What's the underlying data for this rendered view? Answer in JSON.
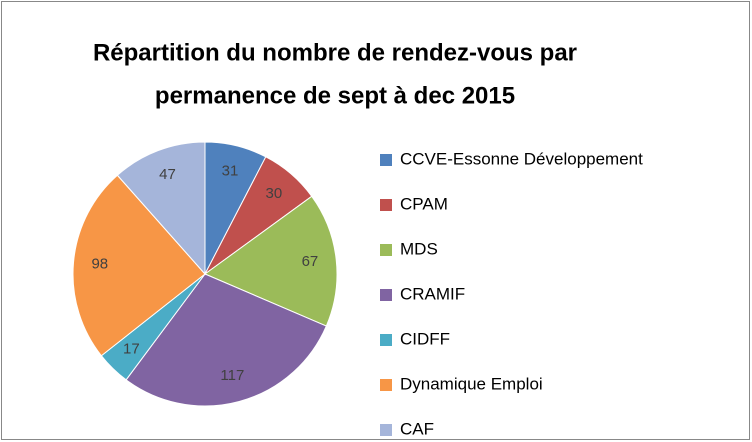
{
  "chart_data": {
    "type": "pie",
    "title": [
      "Répartition du nombre de rendez-vous par",
      "permanence de sept à dec 2015"
    ],
    "categories": [
      "CCVE-Essonne Développement",
      "CPAM",
      "MDS",
      "CRAMIF",
      "CIDFF",
      "Dynamique Emploi",
      "CAF"
    ],
    "values": [
      31,
      30,
      67,
      117,
      17,
      98,
      47
    ],
    "colors": [
      "#4f81bd",
      "#c0504d",
      "#9bbb59",
      "#8064a2",
      "#4bacc6",
      "#f79646",
      "#a5b5da"
    ],
    "legend": "right"
  }
}
